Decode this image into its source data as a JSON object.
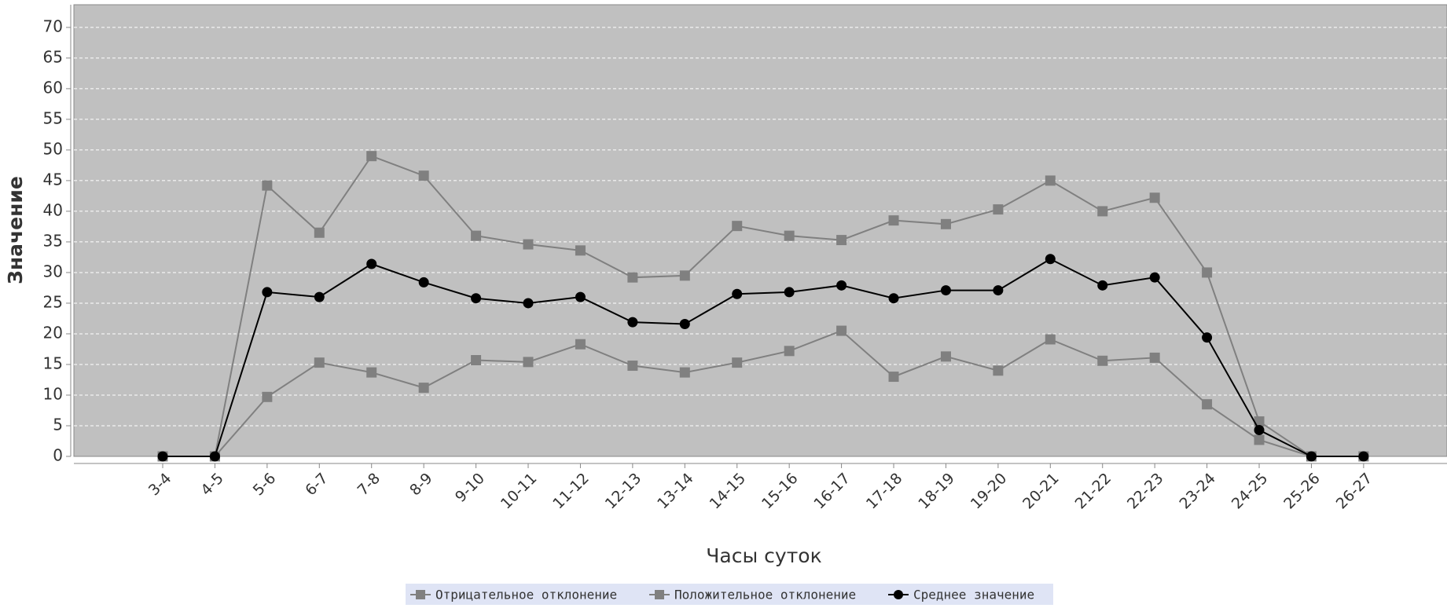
{
  "chart_data": {
    "type": "line",
    "x_label": "Часы суток",
    "y_label": "Значение",
    "categories": [
      "3-4",
      "4-5",
      "5-6",
      "6-7",
      "7-8",
      "8-9",
      "9-10",
      "10-11",
      "11-12",
      "12-13",
      "13-14",
      "14-15",
      "15-16",
      "16-17",
      "17-18",
      "18-19",
      "19-20",
      "20-21",
      "21-22",
      "22-23",
      "23-24",
      "24-25",
      "25-26",
      "26-27"
    ],
    "series": [
      {
        "name": "Отрицательное отклонение",
        "color": "#808080",
        "marker": "square",
        "values": [
          0,
          0,
          9.7,
          15.3,
          13.7,
          11.2,
          15.7,
          15.4,
          18.3,
          14.8,
          13.7,
          15.3,
          17.2,
          20.5,
          13,
          16.3,
          14,
          19.1,
          15.6,
          16.1,
          8.5,
          2.7,
          0,
          0
        ]
      },
      {
        "name": "Положительное отклонение",
        "color": "#808080",
        "marker": "square",
        "values": [
          0,
          0,
          44.2,
          36.5,
          49,
          45.8,
          36,
          34.6,
          33.6,
          29.2,
          29.5,
          37.6,
          36,
          35.3,
          38.5,
          37.9,
          40.3,
          45,
          40,
          42.2,
          30,
          5.7,
          0,
          0
        ]
      },
      {
        "name": "Среднее значение",
        "color": "#000000",
        "marker": "circle",
        "values": [
          0,
          0,
          26.8,
          26,
          31.4,
          28.4,
          25.8,
          25,
          26,
          21.9,
          21.6,
          26.5,
          26.8,
          27.9,
          25.8,
          27.1,
          27.1,
          32.2,
          27.9,
          29.2,
          19.4,
          4.3,
          0,
          0
        ]
      }
    ],
    "ylim": [
      0,
      73.7
    ],
    "yticks": [
      0,
      5,
      10,
      15,
      20,
      25,
      30,
      35,
      40,
      45,
      50,
      55,
      60,
      65,
      70
    ],
    "grid": true
  }
}
